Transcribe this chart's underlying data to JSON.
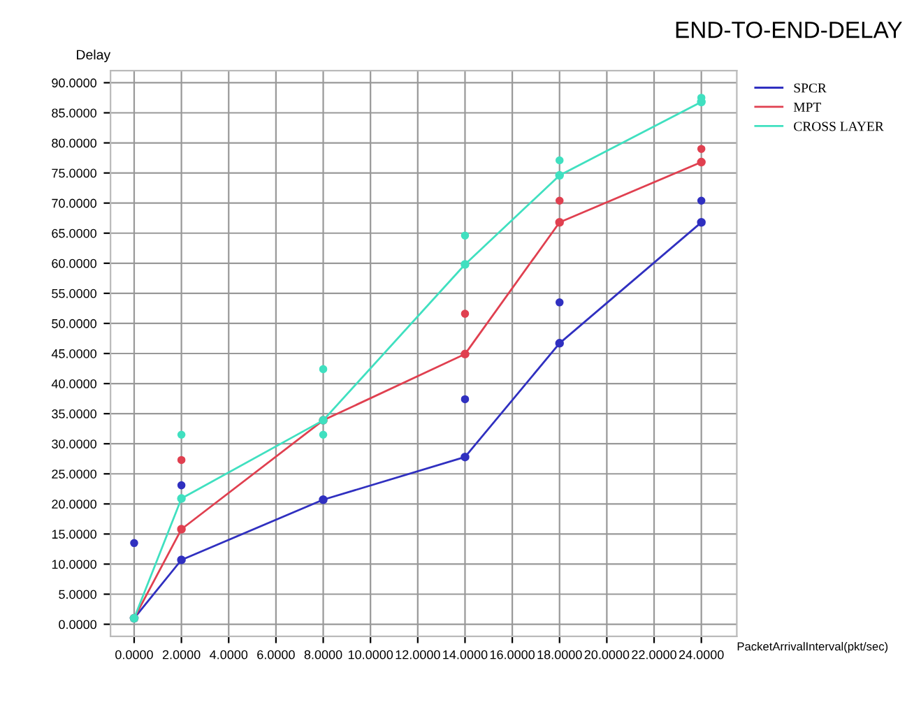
{
  "chart_data": {
    "type": "line",
    "title": "END-TO-END-DELAY",
    "ylabel": "Delay",
    "xlabel": "PacketArrivalInterval(pkt/sec)",
    "x": [
      0,
      2,
      8,
      14,
      18,
      24
    ],
    "series": [
      {
        "name": "SPCR",
        "color": "#3030c0",
        "values": [
          1,
          10.7,
          20.7,
          27.8,
          46.7,
          66.8
        ],
        "marker": "circle"
      },
      {
        "name": "MPT",
        "color": "#e04050",
        "values": [
          1,
          15.8,
          33.9,
          44.9,
          66.8,
          76.8
        ],
        "marker": "circle"
      },
      {
        "name": "CROSS LAYER",
        "color": "#40e0c0",
        "values": [
          1,
          20.9,
          33.9,
          59.8,
          74.6,
          86.8
        ],
        "marker": "circle"
      },
      {
        "type": "scatter",
        "color": "#3030c0",
        "x": [
          0,
          2,
          14,
          18,
          24
        ],
        "values": [
          13.5,
          23.1,
          37.4,
          53.5,
          70.4
        ],
        "marker": "circle"
      },
      {
        "type": "scatter",
        "color": "#e04050",
        "x": [
          2,
          14,
          18,
          24
        ],
        "values": [
          27.3,
          51.6,
          70.4,
          79.0
        ],
        "marker": "circle"
      },
      {
        "type": "scatter",
        "color": "#40e0c0",
        "x": [
          2,
          8,
          8,
          14,
          18,
          24
        ],
        "values": [
          31.5,
          42.4,
          31.5,
          64.6,
          77.1,
          87.5
        ],
        "marker": "circle"
      }
    ],
    "xlim": [
      -1,
      25.5
    ],
    "ylim": [
      -2,
      92
    ],
    "xticks": [
      {
        "value": 0,
        "label": "0.0000"
      },
      {
        "value": 2,
        "label": "2.0000"
      },
      {
        "value": 4,
        "label": "4.0000"
      },
      {
        "value": 6,
        "label": "6.0000"
      },
      {
        "value": 8,
        "label": "8.0000"
      },
      {
        "value": 10,
        "label": "10.0000"
      },
      {
        "value": 12,
        "label": "12.0000"
      },
      {
        "value": 14,
        "label": "14.0000"
      },
      {
        "value": 16,
        "label": "16.0000"
      },
      {
        "value": 18,
        "label": "18.0000"
      },
      {
        "value": 20,
        "label": "20.0000"
      },
      {
        "value": 22,
        "label": "22.0000"
      },
      {
        "value": 24,
        "label": "24.0000"
      }
    ],
    "yticks": [
      {
        "value": 0,
        "label": "0.0000"
      },
      {
        "value": 5,
        "label": "5.0000"
      },
      {
        "value": 10,
        "label": "10.0000"
      },
      {
        "value": 15,
        "label": "15.0000"
      },
      {
        "value": 20,
        "label": "20.0000"
      },
      {
        "value": 25,
        "label": "25.0000"
      },
      {
        "value": 30,
        "label": "30.0000"
      },
      {
        "value": 35,
        "label": "35.0000"
      },
      {
        "value": 40,
        "label": "40.0000"
      },
      {
        "value": 45,
        "label": "45.0000"
      },
      {
        "value": 50,
        "label": "50.0000"
      },
      {
        "value": 55,
        "label": "55.0000"
      },
      {
        "value": 60,
        "label": "60.0000"
      },
      {
        "value": 65,
        "label": "65.0000"
      },
      {
        "value": 70,
        "label": "70.0000"
      },
      {
        "value": 75,
        "label": "75.0000"
      },
      {
        "value": 80,
        "label": "80.0000"
      },
      {
        "value": 85,
        "label": "85.0000"
      },
      {
        "value": 90,
        "label": "90.0000"
      }
    ],
    "grid": true,
    "legend": "top right"
  }
}
